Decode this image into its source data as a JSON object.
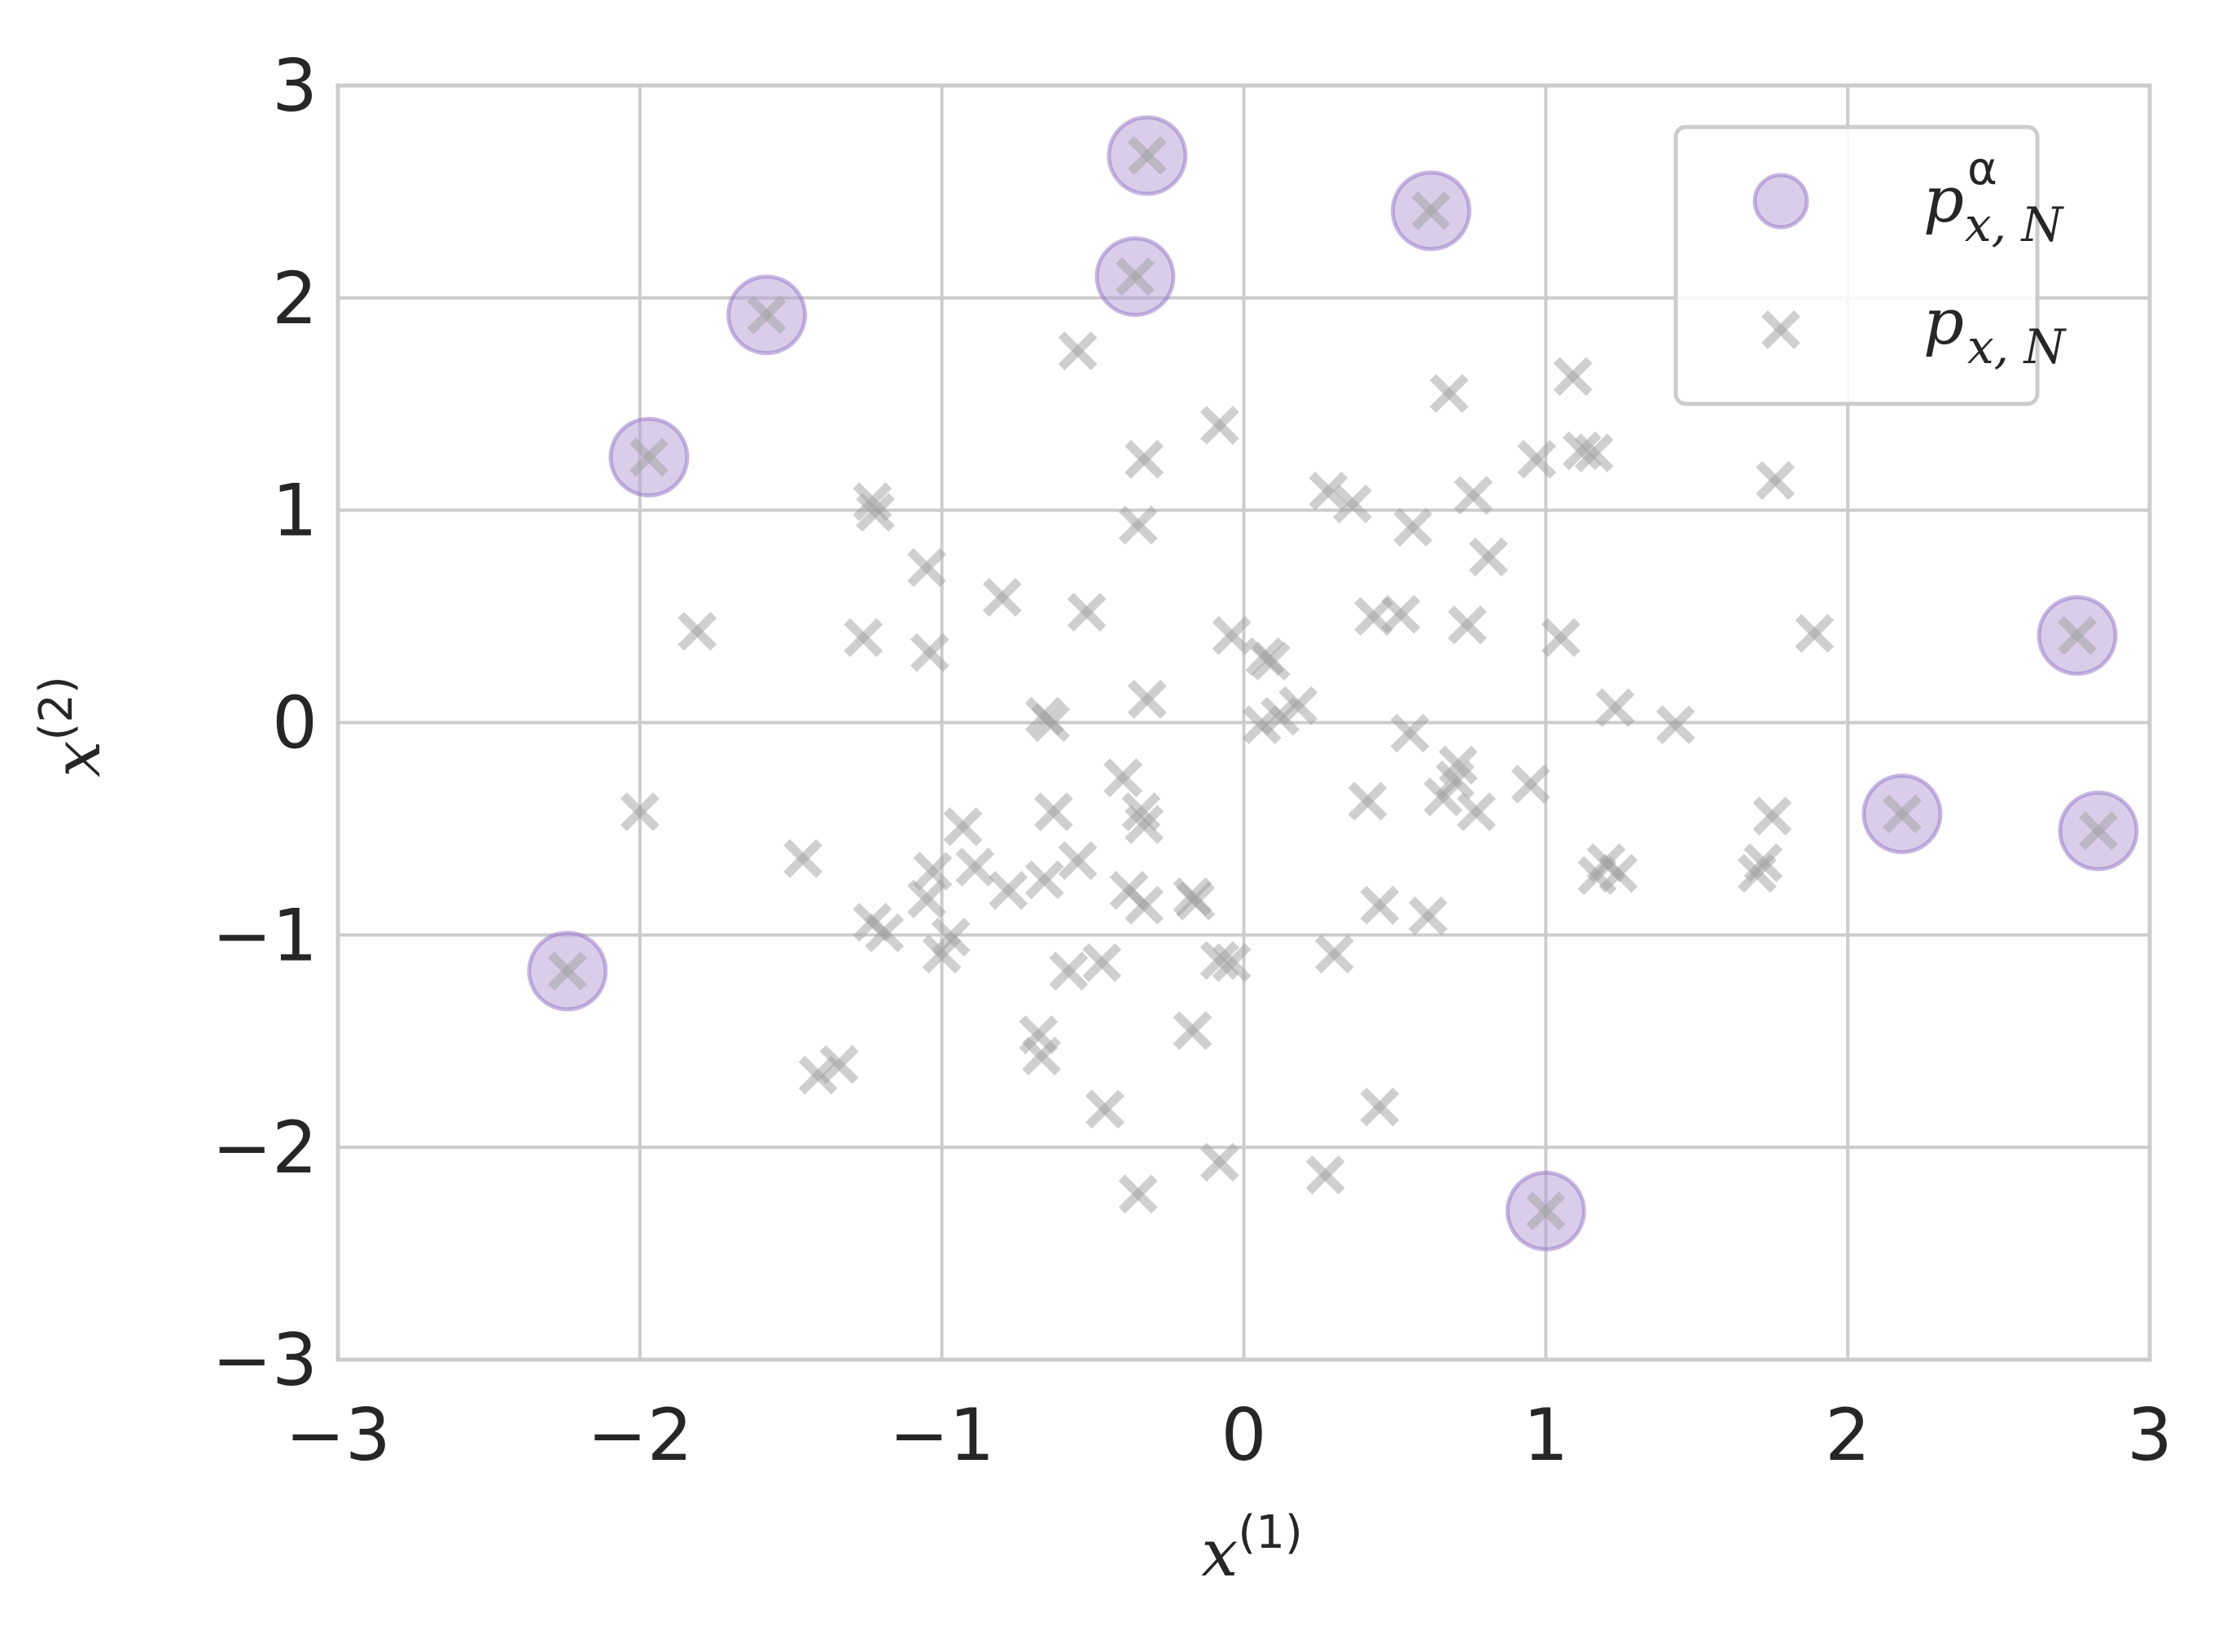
{
  "colors": {
    "selected_fill": "#b79cd6",
    "selected_stroke": "#9b7cc8",
    "cross": "#a0a0a0",
    "grid": "#cccccc",
    "axes_frame": "#cccccc",
    "text": "#262626"
  },
  "chart_data": {
    "type": "scatter",
    "title": "",
    "xlabel": {
      "base": "x",
      "sup": "(1)"
    },
    "ylabel": {
      "base": "x",
      "sup": "(2)"
    },
    "xlim": [
      -3,
      3
    ],
    "ylim": [
      -3,
      3
    ],
    "xticks": [
      -3,
      -2,
      -1,
      0,
      1,
      2,
      3
    ],
    "yticks": [
      -3,
      -2,
      -1,
      0,
      1,
      2,
      3
    ],
    "xtick_labels": [
      "−3",
      "−2",
      "−1",
      "0",
      "1",
      "2",
      "3"
    ],
    "ytick_labels": [
      "−3",
      "−2",
      "−1",
      "0",
      "1",
      "2",
      "3"
    ],
    "grid": true,
    "legend_position": "top-right",
    "series": [
      {
        "name": "p_{x,N}^{α}",
        "legend": {
          "base": "p",
          "sub": "x, N",
          "sup": "α"
        },
        "marker": "circle",
        "points": [
          [
            -0.32,
            2.67
          ],
          [
            0.62,
            2.41
          ],
          [
            -0.36,
            2.1
          ],
          [
            -1.58,
            1.92
          ],
          [
            -1.97,
            1.25
          ],
          [
            2.76,
            0.41
          ],
          [
            2.18,
            -0.43
          ],
          [
            2.83,
            -0.51
          ],
          [
            -2.24,
            -1.17
          ],
          [
            1.0,
            -2.3
          ]
        ]
      },
      {
        "name": "p_{x,N}",
        "legend": {
          "base": "p",
          "sub": "x, N"
        },
        "marker": "x",
        "points": [
          [
            -0.32,
            2.67
          ],
          [
            0.62,
            2.41
          ],
          [
            -0.36,
            2.1
          ],
          [
            -1.58,
            1.92
          ],
          [
            -1.97,
            1.25
          ],
          [
            2.76,
            0.41
          ],
          [
            2.18,
            -0.43
          ],
          [
            2.83,
            -0.51
          ],
          [
            -2.24,
            -1.17
          ],
          [
            1.0,
            -2.3
          ],
          [
            -0.55,
            1.75
          ],
          [
            -0.08,
            1.4
          ],
          [
            0.68,
            1.55
          ],
          [
            1.09,
            1.63
          ],
          [
            -0.33,
            1.24
          ],
          [
            0.97,
            1.24
          ],
          [
            1.12,
            1.28
          ],
          [
            1.16,
            1.27
          ],
          [
            1.76,
            1.14
          ],
          [
            -1.23,
            1.04
          ],
          [
            -1.22,
            0.99
          ],
          [
            0.28,
            1.09
          ],
          [
            0.36,
            1.03
          ],
          [
            0.76,
            1.07
          ],
          [
            -0.35,
            0.93
          ],
          [
            0.56,
            0.92
          ],
          [
            0.81,
            0.78
          ],
          [
            -1.05,
            0.73
          ],
          [
            -0.8,
            0.59
          ],
          [
            -0.52,
            0.52
          ],
          [
            0.43,
            0.5
          ],
          [
            0.52,
            0.51
          ],
          [
            0.74,
            0.46
          ],
          [
            -1.81,
            0.43
          ],
          [
            -1.26,
            0.4
          ],
          [
            -1.04,
            0.33
          ],
          [
            -0.04,
            0.41
          ],
          [
            1.05,
            0.4
          ],
          [
            1.89,
            0.42
          ],
          [
            0.07,
            0.31
          ],
          [
            0.09,
            0.29
          ],
          [
            -0.32,
            0.11
          ],
          [
            0.18,
            0.08
          ],
          [
            0.12,
            0.03
          ],
          [
            0.06,
            -0.01
          ],
          [
            1.23,
            0.07
          ],
          [
            1.43,
            -0.01
          ],
          [
            -0.66,
            0.03
          ],
          [
            -0.64,
            0.0
          ],
          [
            0.55,
            -0.05
          ],
          [
            -0.4,
            -0.26
          ],
          [
            0.71,
            -0.2
          ],
          [
            0.7,
            -0.27
          ],
          [
            0.95,
            -0.29
          ],
          [
            0.41,
            -0.37
          ],
          [
            0.66,
            -0.35
          ],
          [
            0.77,
            -0.42
          ],
          [
            -0.63,
            -0.42
          ],
          [
            -0.34,
            -0.42
          ],
          [
            -0.33,
            -0.48
          ],
          [
            1.75,
            -0.44
          ],
          [
            -0.93,
            -0.49
          ],
          [
            -2.0,
            -0.42
          ],
          [
            -1.46,
            -0.64
          ],
          [
            -0.55,
            -0.65
          ],
          [
            -0.89,
            -0.68
          ],
          [
            -1.03,
            -0.7
          ],
          [
            1.2,
            -0.66
          ],
          [
            1.24,
            -0.71
          ],
          [
            1.17,
            -0.72
          ],
          [
            1.72,
            -0.66
          ],
          [
            1.7,
            -0.71
          ],
          [
            -0.66,
            -0.74
          ],
          [
            -0.78,
            -0.79
          ],
          [
            -0.38,
            -0.79
          ],
          [
            -0.17,
            -0.82
          ],
          [
            -0.16,
            -0.84
          ],
          [
            -1.05,
            -0.83
          ],
          [
            -0.33,
            -0.86
          ],
          [
            0.45,
            -0.86
          ],
          [
            0.61,
            -0.91
          ],
          [
            -1.23,
            -0.94
          ],
          [
            -1.19,
            -0.99
          ],
          [
            -0.97,
            -1.01
          ],
          [
            -1.0,
            -1.09
          ],
          [
            -0.08,
            -1.12
          ],
          [
            -0.04,
            -1.13
          ],
          [
            0.3,
            -1.09
          ],
          [
            -0.47,
            -1.13
          ],
          [
            -0.58,
            -1.17
          ],
          [
            -0.68,
            -1.47
          ],
          [
            -0.67,
            -1.57
          ],
          [
            -0.17,
            -1.45
          ],
          [
            -1.34,
            -1.61
          ],
          [
            -1.41,
            -1.66
          ],
          [
            -0.46,
            -1.82
          ],
          [
            0.45,
            -1.81
          ],
          [
            -0.08,
            -2.07
          ],
          [
            -0.35,
            -2.22
          ],
          [
            0.27,
            -2.13
          ]
        ]
      }
    ]
  }
}
